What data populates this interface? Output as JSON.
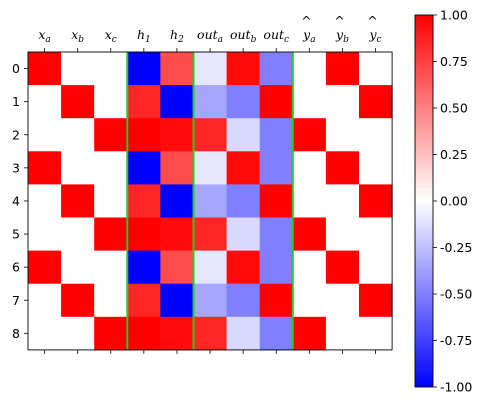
{
  "chart_data": {
    "type": "heatmap",
    "colormap": "bwr",
    "vmin": -1.0,
    "vmax": 1.0,
    "columns": [
      {
        "base": "x",
        "sub": "a",
        "hat": false
      },
      {
        "base": "x",
        "sub": "b",
        "hat": false
      },
      {
        "base": "x",
        "sub": "c",
        "hat": false
      },
      {
        "base": "h",
        "sub": "1",
        "hat": false
      },
      {
        "base": "h",
        "sub": "2",
        "hat": false
      },
      {
        "base": "out",
        "sub": "a",
        "hat": false
      },
      {
        "base": "out",
        "sub": "b",
        "hat": false
      },
      {
        "base": "out",
        "sub": "c",
        "hat": false
      },
      {
        "base": "y",
        "sub": "a",
        "hat": true
      },
      {
        "base": "y",
        "sub": "b",
        "hat": true
      },
      {
        "base": "y",
        "sub": "c",
        "hat": true
      }
    ],
    "rows": [
      "0",
      "1",
      "2",
      "3",
      "4",
      "5",
      "6",
      "7",
      "8"
    ],
    "values": [
      [
        1,
        0,
        0,
        -1.0,
        0.7,
        -0.1,
        0.95,
        -0.5,
        0,
        1,
        0
      ],
      [
        0,
        1,
        0,
        0.85,
        -1.0,
        -0.35,
        -0.5,
        1.0,
        0,
        0,
        1
      ],
      [
        0,
        0,
        1,
        1.0,
        0.95,
        0.85,
        -0.15,
        -0.5,
        1,
        0,
        0
      ],
      [
        1,
        0,
        0,
        -1.0,
        0.7,
        -0.1,
        0.95,
        -0.5,
        0,
        1,
        0
      ],
      [
        0,
        1,
        0,
        0.85,
        -1.0,
        -0.35,
        -0.5,
        1.0,
        0,
        0,
        1
      ],
      [
        0,
        0,
        1,
        1.0,
        0.95,
        0.85,
        -0.15,
        -0.5,
        1,
        0,
        0
      ],
      [
        1,
        0,
        0,
        -1.0,
        0.7,
        -0.1,
        0.95,
        -0.5,
        0,
        1,
        0
      ],
      [
        0,
        1,
        0,
        0.85,
        -1.0,
        -0.35,
        -0.5,
        1.0,
        0,
        0,
        1
      ],
      [
        0,
        0,
        1,
        1.0,
        0.95,
        0.85,
        -0.15,
        -0.5,
        1,
        0,
        0
      ]
    ],
    "separators_after_column": [
      2,
      4,
      7
    ],
    "separator_color": "#22cc22",
    "colorbar": {
      "ticks": [
        1.0,
        0.75,
        0.5,
        0.25,
        0.0,
        -0.25,
        -0.5,
        -0.75,
        -1.0
      ],
      "tick_labels": [
        "1.00",
        "0.75",
        "0.50",
        "0.25",
        "0.00",
        "-0.25",
        "-0.50",
        "-0.75",
        "-1.00"
      ]
    },
    "x_ticks_position": "top",
    "grid": false
  }
}
